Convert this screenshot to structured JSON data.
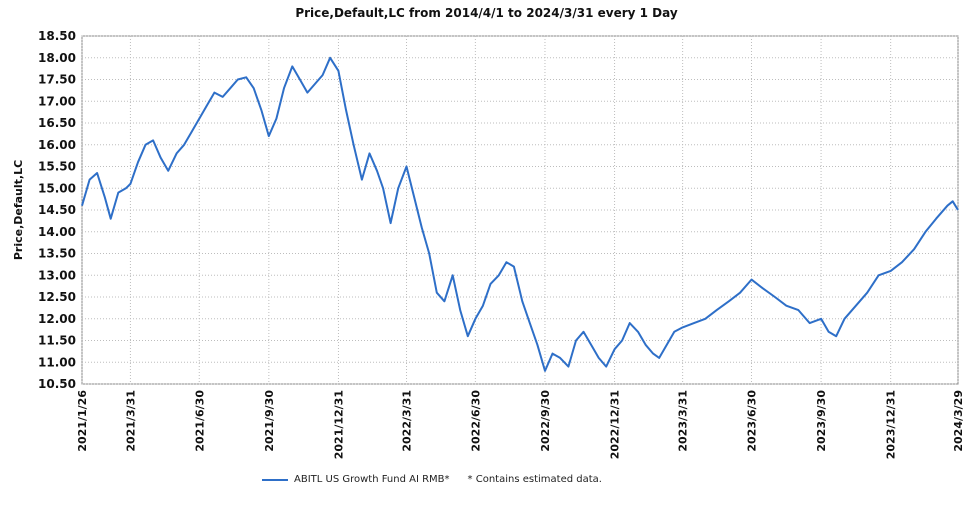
{
  "chart_data": {
    "type": "line",
    "title": "Price,Default,LC from 2014/4/1 to 2024/3/31 every 1 Day",
    "ylabel": "Price,Default,LC",
    "xlabel": "",
    "ylim": [
      10.5,
      18.5
    ],
    "yticks": [
      "10.50",
      "11.00",
      "11.50",
      "12.00",
      "12.50",
      "13.00",
      "13.50",
      "14.00",
      "14.50",
      "15.00",
      "15.50",
      "16.00",
      "16.50",
      "17.00",
      "17.50",
      "18.00",
      "18.50"
    ],
    "xticks": [
      "2021/1/26",
      "2021/3/31",
      "2021/6/30",
      "2021/9/30",
      "2021/12/31",
      "2022/3/31",
      "2022/6/30",
      "2022/9/30",
      "2022/12/31",
      "2023/3/31",
      "2023/6/30",
      "2023/9/30",
      "2023/12/31",
      "2024/3/29"
    ],
    "grid": true,
    "legend_position": "bottom",
    "series": [
      {
        "name": "ABITL US Growth Fund AI RMB*",
        "color": "#2e6fc8",
        "points": [
          [
            "2021-01-26",
            14.6
          ],
          [
            "2021-02-05",
            15.2
          ],
          [
            "2021-02-15",
            15.35
          ],
          [
            "2021-02-25",
            14.8
          ],
          [
            "2021-03-05",
            14.3
          ],
          [
            "2021-03-15",
            14.9
          ],
          [
            "2021-03-25",
            15.0
          ],
          [
            "2021-03-31",
            15.1
          ],
          [
            "2021-04-10",
            15.6
          ],
          [
            "2021-04-20",
            16.0
          ],
          [
            "2021-04-30",
            16.1
          ],
          [
            "2021-05-10",
            15.7
          ],
          [
            "2021-05-20",
            15.4
          ],
          [
            "2021-05-31",
            15.8
          ],
          [
            "2021-06-10",
            16.0
          ],
          [
            "2021-06-20",
            16.3
          ],
          [
            "2021-06-30",
            16.6
          ],
          [
            "2021-07-10",
            16.9
          ],
          [
            "2021-07-20",
            17.2
          ],
          [
            "2021-07-31",
            17.1
          ],
          [
            "2021-08-10",
            17.3
          ],
          [
            "2021-08-20",
            17.5
          ],
          [
            "2021-08-31",
            17.55
          ],
          [
            "2021-09-10",
            17.3
          ],
          [
            "2021-09-20",
            16.8
          ],
          [
            "2021-09-30",
            16.2
          ],
          [
            "2021-10-10",
            16.6
          ],
          [
            "2021-10-20",
            17.3
          ],
          [
            "2021-10-31",
            17.8
          ],
          [
            "2021-11-10",
            17.5
          ],
          [
            "2021-11-20",
            17.2
          ],
          [
            "2021-11-30",
            17.4
          ],
          [
            "2021-12-10",
            17.6
          ],
          [
            "2021-12-20",
            18.0
          ],
          [
            "2021-12-31",
            17.7
          ],
          [
            "2022-01-10",
            16.8
          ],
          [
            "2022-01-20",
            16.0
          ],
          [
            "2022-01-31",
            15.2
          ],
          [
            "2022-02-10",
            15.8
          ],
          [
            "2022-02-20",
            15.4
          ],
          [
            "2022-02-28",
            15.0
          ],
          [
            "2022-03-10",
            14.2
          ],
          [
            "2022-03-20",
            15.0
          ],
          [
            "2022-03-31",
            15.5
          ],
          [
            "2022-04-10",
            14.8
          ],
          [
            "2022-04-20",
            14.1
          ],
          [
            "2022-04-30",
            13.5
          ],
          [
            "2022-05-10",
            12.6
          ],
          [
            "2022-05-20",
            12.4
          ],
          [
            "2022-05-31",
            13.0
          ],
          [
            "2022-06-10",
            12.2
          ],
          [
            "2022-06-20",
            11.6
          ],
          [
            "2022-06-30",
            12.0
          ],
          [
            "2022-07-10",
            12.3
          ],
          [
            "2022-07-20",
            12.8
          ],
          [
            "2022-07-31",
            13.0
          ],
          [
            "2022-08-10",
            13.3
          ],
          [
            "2022-08-20",
            13.2
          ],
          [
            "2022-08-31",
            12.4
          ],
          [
            "2022-09-10",
            11.9
          ],
          [
            "2022-09-20",
            11.4
          ],
          [
            "2022-09-30",
            10.8
          ],
          [
            "2022-10-10",
            11.2
          ],
          [
            "2022-10-20",
            11.1
          ],
          [
            "2022-10-31",
            10.9
          ],
          [
            "2022-11-10",
            11.5
          ],
          [
            "2022-11-20",
            11.7
          ],
          [
            "2022-11-30",
            11.4
          ],
          [
            "2022-12-10",
            11.1
          ],
          [
            "2022-12-20",
            10.9
          ],
          [
            "2022-12-31",
            11.3
          ],
          [
            "2023-01-10",
            11.5
          ],
          [
            "2023-01-20",
            11.9
          ],
          [
            "2023-01-31",
            11.7
          ],
          [
            "2023-02-10",
            11.4
          ],
          [
            "2023-02-20",
            11.2
          ],
          [
            "2023-02-28",
            11.1
          ],
          [
            "2023-03-10",
            11.4
          ],
          [
            "2023-03-20",
            11.7
          ],
          [
            "2023-03-31",
            11.8
          ],
          [
            "2023-04-15",
            11.9
          ],
          [
            "2023-04-30",
            12.0
          ],
          [
            "2023-05-15",
            12.2
          ],
          [
            "2023-05-31",
            12.4
          ],
          [
            "2023-06-15",
            12.6
          ],
          [
            "2023-06-30",
            12.9
          ],
          [
            "2023-07-15",
            12.7
          ],
          [
            "2023-07-31",
            12.5
          ],
          [
            "2023-08-15",
            12.3
          ],
          [
            "2023-08-31",
            12.2
          ],
          [
            "2023-09-15",
            11.9
          ],
          [
            "2023-09-30",
            12.0
          ],
          [
            "2023-10-10",
            11.7
          ],
          [
            "2023-10-20",
            11.6
          ],
          [
            "2023-10-31",
            12.0
          ],
          [
            "2023-11-15",
            12.3
          ],
          [
            "2023-11-30",
            12.6
          ],
          [
            "2023-12-15",
            13.0
          ],
          [
            "2023-12-31",
            13.1
          ],
          [
            "2024-01-15",
            13.3
          ],
          [
            "2024-01-31",
            13.6
          ],
          [
            "2024-02-15",
            14.0
          ],
          [
            "2024-02-29",
            14.3
          ],
          [
            "2024-03-15",
            14.6
          ],
          [
            "2024-03-22",
            14.7
          ],
          [
            "2024-03-29",
            14.5
          ]
        ]
      }
    ],
    "note": "* Contains estimated data."
  }
}
